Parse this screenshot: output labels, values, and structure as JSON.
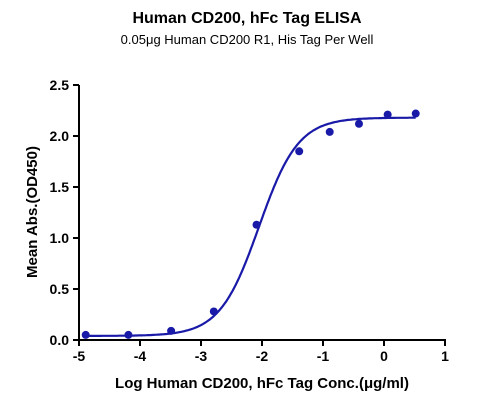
{
  "chart_data": {
    "type": "scatter",
    "title": "Human CD200, hFc Tag ELISA",
    "subtitle": "0.05μg Human CD200 R1, His Tag Per Well",
    "xlabel": "Log Human CD200, hFc Tag Conc.(μg/ml)",
    "ylabel": "Mean Abs.(OD450)",
    "xlim": [
      -5,
      1
    ],
    "ylim": [
      0,
      2.5
    ],
    "xticks": [
      "-5",
      "-4",
      "-3",
      "-2",
      "-1",
      "0",
      "1"
    ],
    "yticks": [
      "0.0",
      "0.5",
      "1.0",
      "1.5",
      "2.0",
      "2.5"
    ],
    "grid": false,
    "legend": "none",
    "series": [
      {
        "x": [
          -4.89,
          -4.19,
          -3.49,
          -2.79,
          -2.09,
          -1.39,
          -0.89,
          -0.41,
          0.06,
          0.52
        ],
        "y": [
          0.05,
          0.05,
          0.09,
          0.28,
          1.13,
          1.85,
          2.04,
          2.12,
          2.21,
          2.22
        ],
        "fit": {
          "bottom": 0.04,
          "top": 2.18,
          "logEC50": -2.05,
          "hill": 1.35
        }
      }
    ],
    "color": "#1a1aa8"
  }
}
